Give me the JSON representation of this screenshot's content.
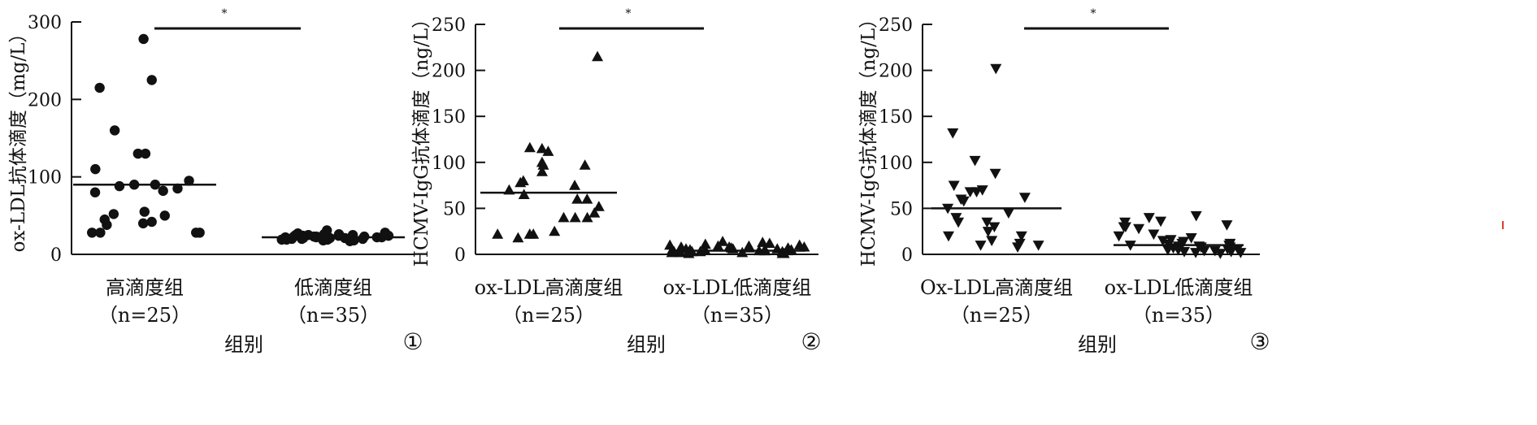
{
  "colors": {
    "ink": "#111111",
    "red_tick": "#e03b2b"
  },
  "chart_data": [
    {
      "type": "scatter",
      "marker": "circle",
      "ylabel": "ox-LDL抗体滴度（mg/L）",
      "xlabel": "组别",
      "panel_label": "①",
      "ylim": [
        0,
        300
      ],
      "yticks": [
        0,
        100,
        200,
        300
      ],
      "significance": "*",
      "groups": [
        {
          "label": "高滴度组",
          "n_label": "（n=25）",
          "mean": 90,
          "values": [
            278,
            225,
            215,
            160,
            130,
            130,
            110,
            95,
            90,
            90,
            88,
            85,
            82,
            80,
            55,
            52,
            50,
            45,
            42,
            40,
            38,
            28,
            28,
            28,
            28
          ]
        },
        {
          "label": "低滴度组",
          "n_label": "（n=35）",
          "mean": 22,
          "values": [
            31,
            28,
            27,
            26,
            26,
            25,
            25,
            25,
            24,
            24,
            24,
            24,
            23,
            23,
            23,
            23,
            22,
            22,
            22,
            22,
            22,
            21,
            21,
            21,
            21,
            20,
            20,
            20,
            20,
            19,
            19,
            19,
            18,
            18,
            17
          ]
        }
      ]
    },
    {
      "type": "scatter",
      "marker": "triangle-up",
      "ylabel": "HCMV-IgG抗体滴度（ng/L）",
      "xlabel": "组别",
      "panel_label": "②",
      "ylim": [
        0,
        250
      ],
      "yticks": [
        0,
        50,
        100,
        150,
        200,
        250
      ],
      "significance": "*",
      "groups": [
        {
          "label": "ox-LDL高滴度组",
          "n_label": "（n=25）",
          "mean": 67,
          "values": [
            215,
            116,
            115,
            112,
            100,
            97,
            97,
            90,
            80,
            78,
            75,
            70,
            65,
            60,
            60,
            52,
            45,
            40,
            40,
            40,
            25,
            22,
            22,
            22,
            18
          ]
        },
        {
          "label": "ox-LDL低滴度组",
          "n_label": "（n=35）",
          "mean": 4,
          "values": [
            14,
            13,
            12,
            11,
            10,
            10,
            9,
            9,
            8,
            8,
            8,
            7,
            7,
            7,
            6,
            6,
            6,
            5,
            5,
            5,
            5,
            4,
            4,
            4,
            4,
            3,
            3,
            3,
            3,
            2,
            2,
            2,
            1,
            1,
            1
          ]
        }
      ]
    },
    {
      "type": "scatter",
      "marker": "triangle-down",
      "ylabel": "HCMV-IgG抗体滴度（ng/L）",
      "xlabel": "组别",
      "panel_label": "③",
      "ylim": [
        0,
        250
      ],
      "yticks": [
        0,
        50,
        100,
        150,
        200,
        250
      ],
      "significance": "*",
      "groups": [
        {
          "label": "Ox-LDL高滴度组",
          "n_label": "（n=25）",
          "mean": 50,
          "values": [
            202,
            132,
            102,
            88,
            75,
            70,
            68,
            68,
            62,
            60,
            58,
            50,
            45,
            40,
            35,
            35,
            30,
            25,
            20,
            20,
            15,
            12,
            10,
            10,
            8
          ]
        },
        {
          "label": "ox-LDL低滴度组",
          "n_label": "（n=35）",
          "mean": 10,
          "values": [
            42,
            40,
            36,
            35,
            32,
            30,
            30,
            28,
            22,
            20,
            18,
            16,
            15,
            14,
            12,
            12,
            11,
            10,
            10,
            9,
            9,
            8,
            8,
            7,
            6,
            6,
            5,
            5,
            4,
            4,
            3,
            3,
            2,
            2,
            1
          ]
        }
      ]
    }
  ]
}
